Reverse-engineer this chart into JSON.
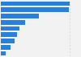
{
  "bars": [
    {
      "value": 100,
      "color": "#2a7de1"
    },
    {
      "value": 98,
      "color": "#2a7de1"
    },
    {
      "value": 55,
      "color": "#2a7de1"
    },
    {
      "value": 35,
      "color": "#2a7de1"
    },
    {
      "value": 27,
      "color": "#2a7de1"
    },
    {
      "value": 24,
      "color": "#2a7de1"
    },
    {
      "value": 20,
      "color": "#2a7de1"
    },
    {
      "value": 14,
      "color": "#2a7de1"
    },
    {
      "value": 7,
      "color": "#2a7de1"
    }
  ],
  "xlim": [
    0,
    115
  ],
  "background_color": "#f2f2f2",
  "grid_color": "#cccccc",
  "bar_height": 0.75
}
